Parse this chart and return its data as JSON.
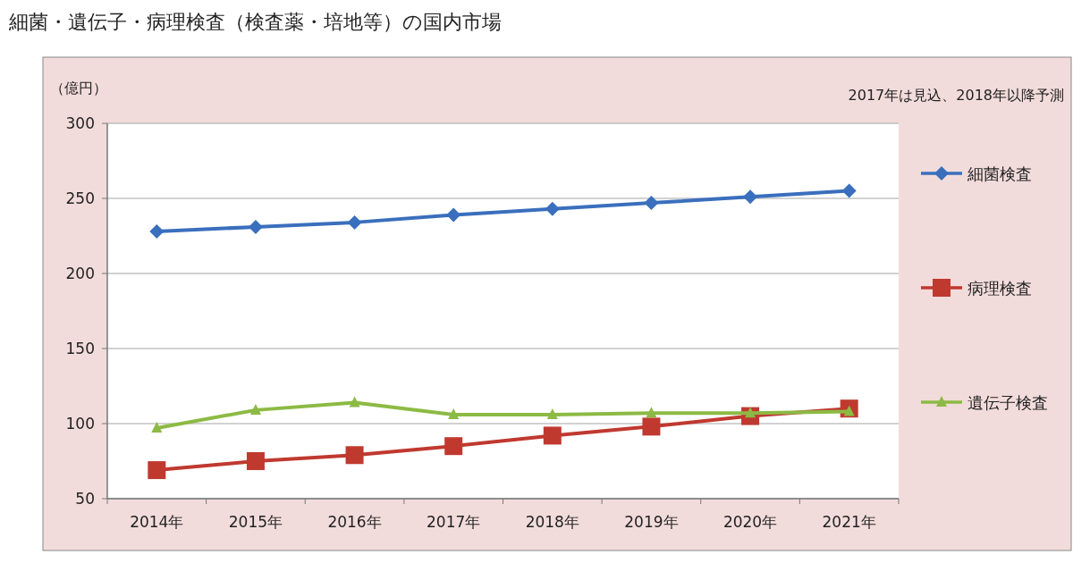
{
  "chart_data": {
    "type": "line",
    "title": "細菌・遺伝子・病理検査（検査薬・培地等）の国内市場",
    "ylabel": "（億円）",
    "annotations": [
      "2017年は見込、2018年以降予測"
    ],
    "categories": [
      "2014年",
      "2015年",
      "2016年",
      "2017年",
      "2018年",
      "2019年",
      "2020年",
      "2021年"
    ],
    "series": [
      {
        "name": "細菌検査",
        "color": "#3a6fbd",
        "marker": "diamond",
        "values": [
          228,
          231,
          234,
          239,
          243,
          247,
          251,
          255
        ]
      },
      {
        "name": "病理検査",
        "color": "#c0392f",
        "marker": "square",
        "values": [
          69,
          75,
          79,
          85,
          92,
          98,
          105,
          110
        ]
      },
      {
        "name": "遺伝子検査",
        "color": "#8cba44",
        "marker": "triangle",
        "values": [
          97,
          109,
          114,
          106,
          106,
          107,
          107,
          108
        ]
      }
    ],
    "ylim": [
      50,
      300
    ],
    "yticks": [
      50,
      100,
      150,
      200,
      250,
      300
    ],
    "grid": "y",
    "legend": "right",
    "line_style": "solid"
  }
}
